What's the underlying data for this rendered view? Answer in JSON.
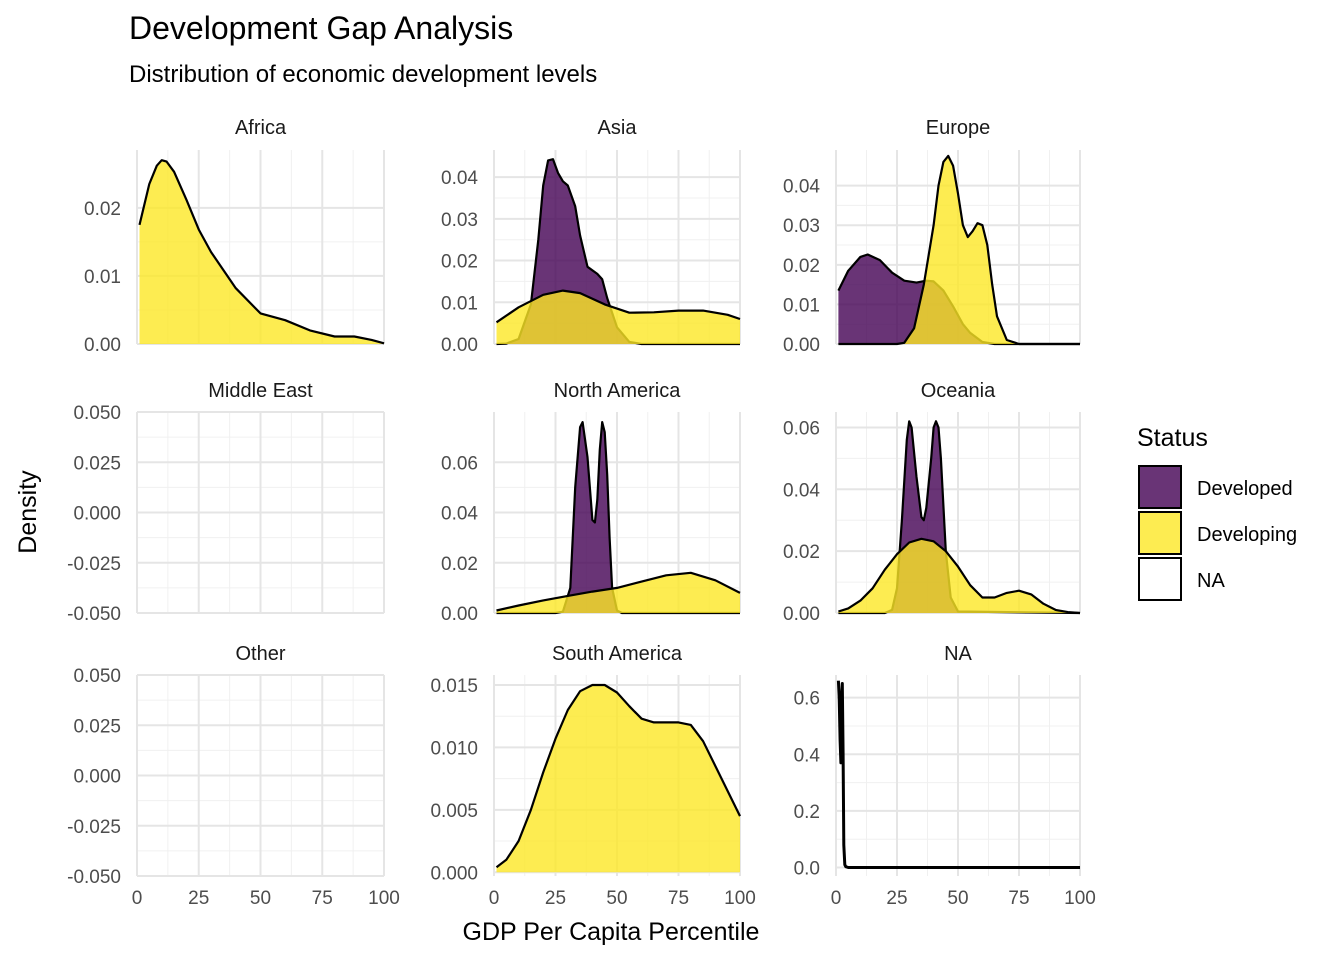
{
  "chart_data": {
    "type": "area",
    "subtype": "faceted-density",
    "title": "Development Gap Analysis",
    "subtitle": "Distribution of economic development levels",
    "xlabel": "GDP Per Capita Percentile",
    "ylabel": "Density",
    "x_ticks": [
      "0",
      "25",
      "50",
      "75",
      "100"
    ],
    "xlim": [
      0,
      100
    ],
    "grid": true,
    "legend": {
      "title": "Status",
      "position": "right",
      "entries": [
        {
          "label": "Developed",
          "color": "#440154"
        },
        {
          "label": "Developing",
          "color": "#FDE725"
        },
        {
          "label": "NA",
          "color": "#FFFFFF"
        }
      ]
    },
    "fill_opacity": 0.8,
    "facets": [
      {
        "name": "Africa",
        "ylim": [
          0,
          0.0285
        ],
        "y_ticks": [
          {
            "v": 0,
            "label": "0.00"
          },
          {
            "v": 0.01,
            "label": "0.01"
          },
          {
            "v": 0.02,
            "label": "0.02"
          }
        ],
        "series": [
          {
            "status": "Developing",
            "x": [
              1,
              5,
              8,
              10,
              12,
              15,
              20,
              25,
              30,
              40,
              50,
              60,
              70,
              80,
              88,
              95,
              100
            ],
            "y": [
              0.0175,
              0.0235,
              0.0262,
              0.027,
              0.0268,
              0.0253,
              0.0212,
              0.0168,
              0.0135,
              0.0082,
              0.0045,
              0.0035,
              0.002,
              0.0011,
              0.0011,
              0.0006,
              0.0001
            ]
          }
        ]
      },
      {
        "name": "Asia",
        "ylim": [
          0,
          0.0465
        ],
        "y_ticks": [
          {
            "v": 0,
            "label": "0.00"
          },
          {
            "v": 0.01,
            "label": "0.01"
          },
          {
            "v": 0.02,
            "label": "0.02"
          },
          {
            "v": 0.03,
            "label": "0.03"
          },
          {
            "v": 0.04,
            "label": "0.04"
          }
        ],
        "series": [
          {
            "status": "Developed",
            "x": [
              1,
              5,
              10,
              15,
              18,
              20,
              22,
              24,
              26,
              28,
              30,
              33,
              35,
              38,
              42,
              44,
              46,
              50,
              55,
              60,
              70,
              80,
              90,
              100
            ],
            "y": [
              0,
              0.0001,
              0.0012,
              0.0095,
              0.025,
              0.038,
              0.044,
              0.0443,
              0.041,
              0.039,
              0.038,
              0.033,
              0.026,
              0.0185,
              0.0168,
              0.0155,
              0.011,
              0.004,
              0.0005,
              0,
              0,
              0,
              0,
              0
            ]
          },
          {
            "status": "Developing",
            "x": [
              1,
              10,
              20,
              28,
              35,
              45,
              55,
              65,
              75,
              85,
              95,
              100
            ],
            "y": [
              0.0052,
              0.0088,
              0.0118,
              0.0128,
              0.0122,
              0.0095,
              0.0075,
              0.0076,
              0.008,
              0.008,
              0.007,
              0.006
            ]
          }
        ]
      },
      {
        "name": "Europe",
        "ylim": [
          0,
          0.049
        ],
        "y_ticks": [
          {
            "v": 0,
            "label": "0.00"
          },
          {
            "v": 0.01,
            "label": "0.01"
          },
          {
            "v": 0.02,
            "label": "0.02"
          },
          {
            "v": 0.03,
            "label": "0.03"
          },
          {
            "v": 0.04,
            "label": "0.04"
          }
        ],
        "series": [
          {
            "status": "Developed",
            "x": [
              1,
              5,
              10,
              13,
              18,
              23,
              28,
              33,
              37,
              40,
              44,
              48,
              52,
              55,
              60,
              65,
              70,
              80,
              100
            ],
            "y": [
              0.0135,
              0.0185,
              0.022,
              0.0226,
              0.0212,
              0.018,
              0.016,
              0.0155,
              0.016,
              0.0158,
              0.0135,
              0.0095,
              0.005,
              0.0028,
              0.0005,
              0,
              0,
              0,
              0
            ]
          },
          {
            "status": "Developing",
            "x": [
              1,
              10,
              20,
              25,
              28,
              32,
              36,
              40,
              42,
              44,
              46,
              48,
              50,
              52,
              54,
              56,
              58,
              60,
              62,
              64,
              66,
              70,
              75,
              100
            ],
            "y": [
              0,
              0,
              0,
              0,
              0.0003,
              0.004,
              0.015,
              0.03,
              0.04,
              0.046,
              0.0475,
              0.045,
              0.038,
              0.03,
              0.027,
              0.0285,
              0.0305,
              0.03,
              0.025,
              0.015,
              0.007,
              0.001,
              0,
              0
            ]
          }
        ]
      },
      {
        "name": "Middle East",
        "ylim": [
          -0.05,
          0.05
        ],
        "y_ticks": [
          {
            "v": -0.05,
            "label": "-0.050"
          },
          {
            "v": -0.025,
            "label": "-0.025"
          },
          {
            "v": 0,
            "label": "0.000"
          },
          {
            "v": 0.025,
            "label": "0.025"
          },
          {
            "v": 0.05,
            "label": "0.050"
          }
        ],
        "series": []
      },
      {
        "name": "North America",
        "ylim": [
          0,
          0.08
        ],
        "y_ticks": [
          {
            "v": 0,
            "label": "0.00"
          },
          {
            "v": 0.02,
            "label": "0.02"
          },
          {
            "v": 0.04,
            "label": "0.04"
          },
          {
            "v": 0.06,
            "label": "0.06"
          }
        ],
        "series": [
          {
            "status": "Developed",
            "x": [
              1,
              25,
              28,
              31,
              33,
              35,
              36,
              38,
              40,
              41,
              42,
              43,
              44,
              45,
              46,
              47,
              48,
              50,
              52,
              55,
              100
            ],
            "y": [
              0,
              0,
              0.0005,
              0.01,
              0.05,
              0.074,
              0.076,
              0.062,
              0.037,
              0.036,
              0.045,
              0.065,
              0.076,
              0.072,
              0.055,
              0.03,
              0.01,
              0.001,
              0,
              0,
              0
            ]
          },
          {
            "status": "Developing",
            "x": [
              1,
              10,
              20,
              30,
              40,
              50,
              60,
              70,
              80,
              90,
              100
            ],
            "y": [
              0.001,
              0.003,
              0.005,
              0.0068,
              0.0085,
              0.01,
              0.0125,
              0.015,
              0.016,
              0.013,
              0.008
            ]
          }
        ]
      },
      {
        "name": "Oceania",
        "ylim": [
          0,
          0.065
        ],
        "y_ticks": [
          {
            "v": 0,
            "label": "0.00"
          },
          {
            "v": 0.02,
            "label": "0.02"
          },
          {
            "v": 0.04,
            "label": "0.04"
          },
          {
            "v": 0.06,
            "label": "0.06"
          }
        ],
        "series": [
          {
            "status": "Developed",
            "x": [
              1,
              20,
              23,
              25,
              27,
              29,
              30,
              31,
              33,
              35,
              36,
              37,
              39,
              40,
              41,
              42,
              43,
              45,
              47,
              50,
              100
            ],
            "y": [
              0,
              0,
              0.001,
              0.008,
              0.03,
              0.056,
              0.062,
              0.06,
              0.044,
              0.031,
              0.03,
              0.034,
              0.05,
              0.06,
              0.062,
              0.06,
              0.05,
              0.02,
              0.005,
              0.0005,
              0
            ]
          },
          {
            "status": "Developing",
            "x": [
              1,
              5,
              10,
              15,
              20,
              25,
              30,
              35,
              40,
              45,
              50,
              55,
              60,
              65,
              70,
              75,
              80,
              85,
              90,
              95,
              100
            ],
            "y": [
              0.0005,
              0.0015,
              0.004,
              0.008,
              0.014,
              0.019,
              0.0228,
              0.024,
              0.0232,
              0.02,
              0.015,
              0.009,
              0.005,
              0.005,
              0.0065,
              0.0072,
              0.006,
              0.003,
              0.001,
              0.0003,
              0
            ]
          }
        ]
      },
      {
        "name": "Other",
        "ylim": [
          -0.05,
          0.05
        ],
        "y_ticks": [
          {
            "v": -0.05,
            "label": "-0.050"
          },
          {
            "v": -0.025,
            "label": "-0.025"
          },
          {
            "v": 0,
            "label": "0.000"
          },
          {
            "v": 0.025,
            "label": "0.025"
          },
          {
            "v": 0.05,
            "label": "0.050"
          }
        ],
        "series": []
      },
      {
        "name": "South America",
        "ylim": [
          -0.0003,
          0.0158
        ],
        "y_ticks": [
          {
            "v": 0,
            "label": "0.000"
          },
          {
            "v": 0.005,
            "label": "0.005"
          },
          {
            "v": 0.01,
            "label": "0.010"
          },
          {
            "v": 0.015,
            "label": "0.015"
          }
        ],
        "series": [
          {
            "status": "Developing",
            "x": [
              1,
              5,
              10,
              15,
              20,
              25,
              30,
              35,
              40,
              45,
              50,
              55,
              60,
              65,
              70,
              75,
              80,
              85,
              90,
              95,
              100
            ],
            "y": [
              0.0004,
              0.001,
              0.0025,
              0.005,
              0.008,
              0.0107,
              0.013,
              0.0145,
              0.015,
              0.015,
              0.0144,
              0.0133,
              0.0123,
              0.012,
              0.012,
              0.012,
              0.0118,
              0.0105,
              0.0085,
              0.0065,
              0.0045
            ]
          }
        ]
      },
      {
        "name": "NA",
        "ylim": [
          -0.03,
          0.68
        ],
        "y_ticks": [
          {
            "v": 0,
            "label": "0.0"
          },
          {
            "v": 0.2,
            "label": "0.2"
          },
          {
            "v": 0.4,
            "label": "0.4"
          },
          {
            "v": 0.6,
            "label": "0.6"
          }
        ],
        "series": [
          {
            "status": "NA",
            "x": [
              1,
              1.3,
              1.7,
              2.0,
              2.3,
              2.6,
              2.9,
              3.2,
              3.6,
              4,
              5,
              100
            ],
            "y": [
              0.66,
              0.6,
              0.45,
              0.37,
              0.6,
              0.65,
              0.4,
              0.08,
              0.01,
              0.003,
              0,
              0
            ]
          }
        ]
      }
    ]
  }
}
